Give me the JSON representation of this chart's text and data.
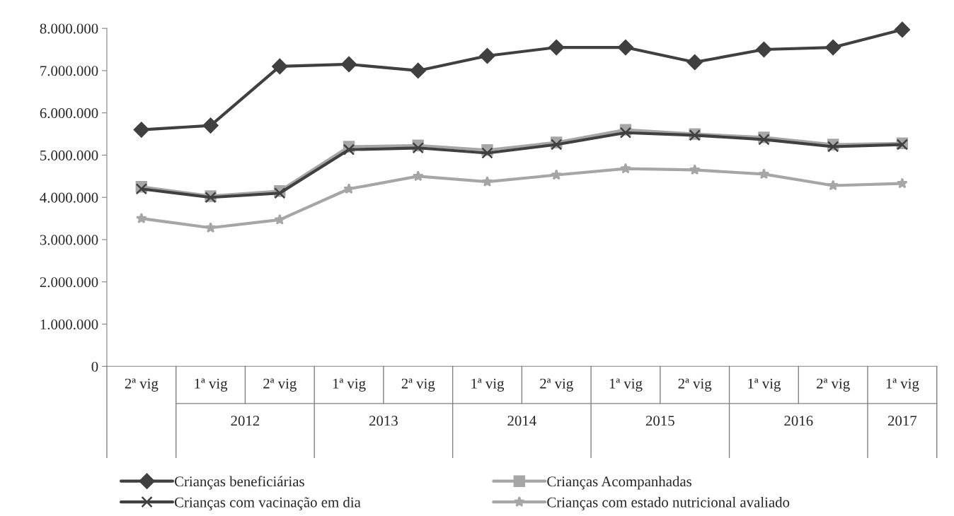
{
  "chart_data": {
    "type": "line",
    "categories": [
      "2ª vig",
      "1ª vig",
      "2ª vig",
      "1ª vig",
      "2ª vig",
      "1ª vig",
      "2ª vig",
      "1ª vig",
      "2ª vig",
      "1ª vig",
      "2ª vig",
      "1ª vig"
    ],
    "annotations": [
      "2012",
      "2013",
      "2014",
      "2015",
      "2016",
      "2017"
    ],
    "series": [
      {
        "name": "Crianças beneficiárias",
        "color": "#404040",
        "marker": "diamond",
        "values": [
          5600000,
          5700000,
          7100000,
          7150000,
          7000000,
          7350000,
          7550000,
          7550000,
          7200000,
          7500000,
          7550000,
          7970000
        ]
      },
      {
        "name": "Crianças Acompanhadas",
        "color": "#a6a6a6",
        "marker": "square",
        "values": [
          4250000,
          4030000,
          4150000,
          5200000,
          5230000,
          5120000,
          5300000,
          5600000,
          5500000,
          5420000,
          5250000,
          5280000
        ]
      },
      {
        "name": "Crianças com vacinação em dia",
        "color": "#404040",
        "marker": "cross",
        "values": [
          4200000,
          4000000,
          4100000,
          5130000,
          5170000,
          5050000,
          5250000,
          5530000,
          5470000,
          5370000,
          5200000,
          5250000
        ]
      },
      {
        "name": "Crianças com estado nutricional avaliado",
        "color": "#a6a6a6",
        "marker": "star",
        "values": [
          3500000,
          3280000,
          3470000,
          4200000,
          4500000,
          4370000,
          4530000,
          4680000,
          4650000,
          4550000,
          4280000,
          4330000
        ]
      }
    ],
    "ylim": [
      0,
      8000000
    ],
    "yticks": [
      0,
      {
        "value": 1000000,
        "label": "1.000.000"
      },
      {
        "value": 2000000,
        "label": "2.000.000"
      },
      {
        "value": 3000000,
        "label": "3.000.000"
      },
      {
        "value": 4000000,
        "label": "4.000.000"
      },
      {
        "value": 5000000,
        "label": "5.000.000"
      },
      {
        "value": 6000000,
        "label": "6.000.000"
      },
      {
        "value": 7000000,
        "label": "7.000.000"
      },
      {
        "value": 8000000,
        "label": "8.000.000"
      }
    ],
    "grid": false,
    "legend": "bottom",
    "line_style": "solid"
  }
}
